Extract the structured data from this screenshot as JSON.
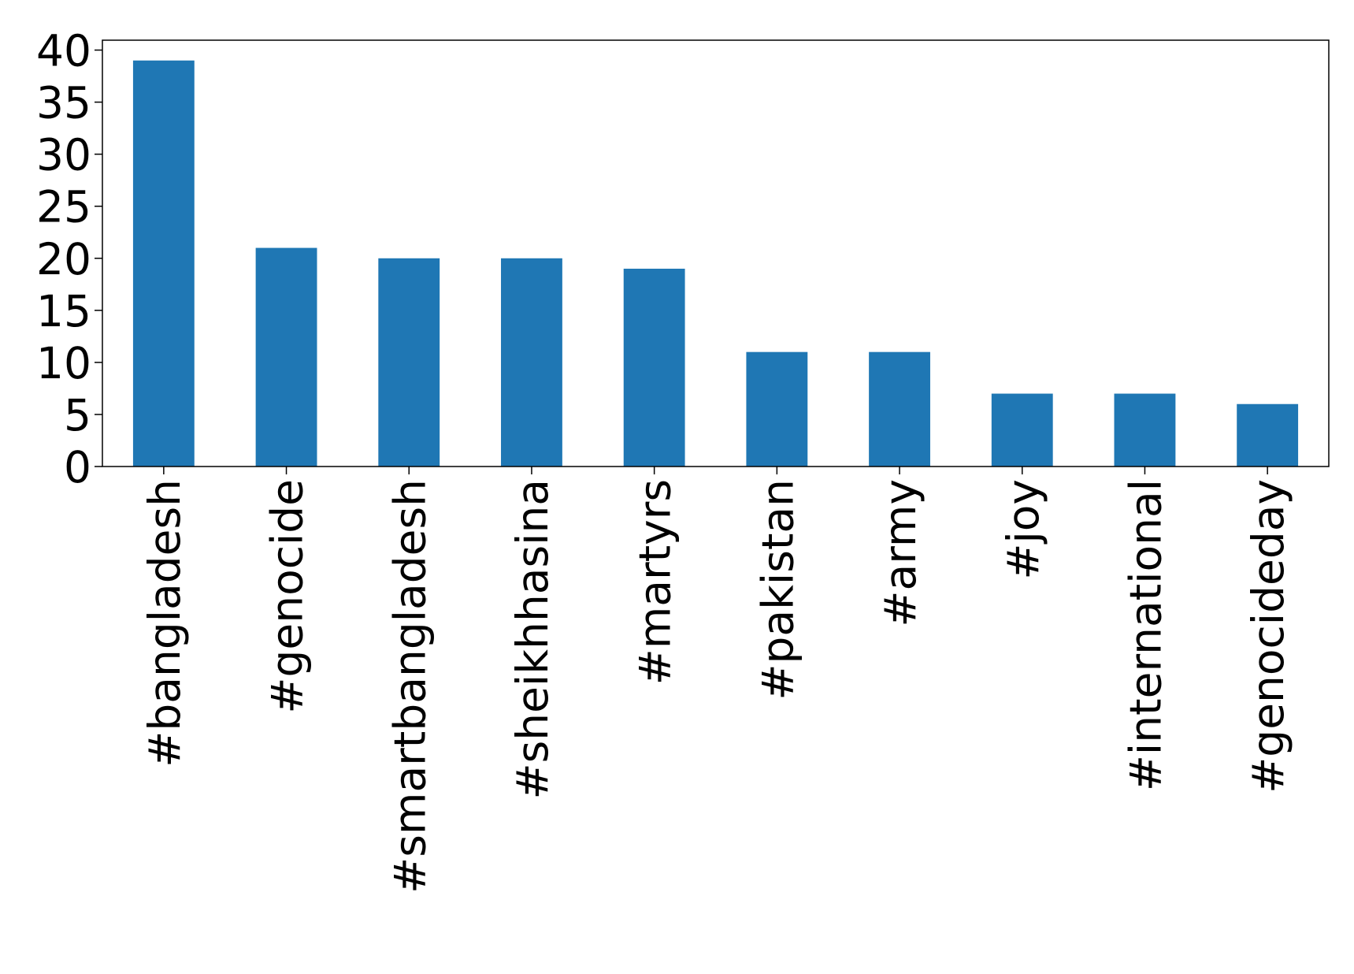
{
  "chart_data": {
    "type": "bar",
    "categories": [
      "#bangladesh",
      "#genocide",
      "#smartbangladesh",
      "#sheikhhasina",
      "#martyrs",
      "#pakistan",
      "#army",
      "#joy",
      "#international",
      "#genocideday"
    ],
    "values": [
      39,
      21,
      20,
      20,
      19,
      11,
      11,
      7,
      7,
      6
    ],
    "color": "#1f77b4",
    "ylim": [
      0,
      40.95
    ],
    "yticks": [
      0,
      5,
      10,
      15,
      20,
      25,
      30,
      35,
      40
    ],
    "grid": false
  }
}
